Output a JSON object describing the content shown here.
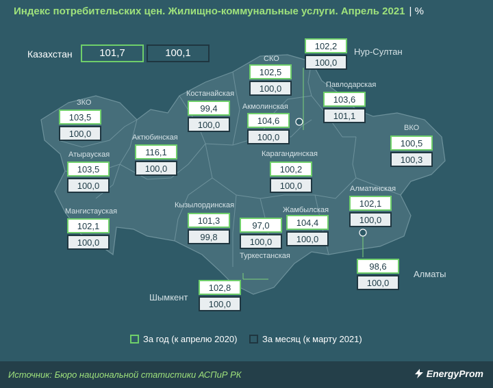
{
  "title": "Индекс потребительских цен. Жилищно-коммунальные услуги. Апрель 2021",
  "unit": "%",
  "country": {
    "label": "Казахстан",
    "year": "101,7",
    "month": "100,1"
  },
  "regions": [
    {
      "id": "zko",
      "name": "ЗКО",
      "year": "103,5",
      "month": "100,0"
    },
    {
      "id": "atyrau",
      "name": "Атырауская",
      "year": "103,5",
      "month": "100,0"
    },
    {
      "id": "mangystau",
      "name": "Мангистауская",
      "year": "102,1",
      "month": "100,0"
    },
    {
      "id": "aktobe",
      "name": "Актюбинская",
      "year": "116,1",
      "month": "100,0"
    },
    {
      "id": "kostanay",
      "name": "Костанайская",
      "year": "99,4",
      "month": "100,0"
    },
    {
      "id": "sko",
      "name": "СКО",
      "year": "102,5",
      "month": "100,0"
    },
    {
      "id": "nursultan",
      "name": "Нур-Султан",
      "year": "102,2",
      "month": "100,0"
    },
    {
      "id": "akmola",
      "name": "Акмолинская",
      "year": "104,6",
      "month": "100,0"
    },
    {
      "id": "pavlodar",
      "name": "Павлодарская",
      "year": "103,6",
      "month": "101,1"
    },
    {
      "id": "vko",
      "name": "ВКО",
      "year": "100,5",
      "month": "100,3"
    },
    {
      "id": "karaganda",
      "name": "Карагандинская",
      "year": "100,2",
      "month": "100,0"
    },
    {
      "id": "kyzylorda",
      "name": "Кызылординская",
      "year": "101,3",
      "month": "99,8"
    },
    {
      "id": "turkestan",
      "name": "Туркестанская",
      "year": "97,0",
      "month": "100,0"
    },
    {
      "id": "zhambyl",
      "name": "Жамбылская",
      "year": "104,4",
      "month": "100,0"
    },
    {
      "id": "almaty_reg",
      "name": "Алматинская",
      "year": "102,1",
      "month": "100,0"
    },
    {
      "id": "almaty",
      "name": "Алматы",
      "year": "98,6",
      "month": "100,0"
    },
    {
      "id": "shymkent",
      "name": "Шымкент",
      "year": "102,8",
      "month": "100,0"
    }
  ],
  "legend": {
    "year": "За год (к апрелю 2020)",
    "month": "За месяц (к марту 2021)"
  },
  "source": "Источник: Бюро национальной  статистики АСПиР РК",
  "brand": "EnergyProm",
  "colors": {
    "background": "#2f5a67",
    "map_fill": "#466e7a",
    "accent": "#9fe27c",
    "year_border": "#6fcf6a",
    "month_border": "#1f3640"
  }
}
